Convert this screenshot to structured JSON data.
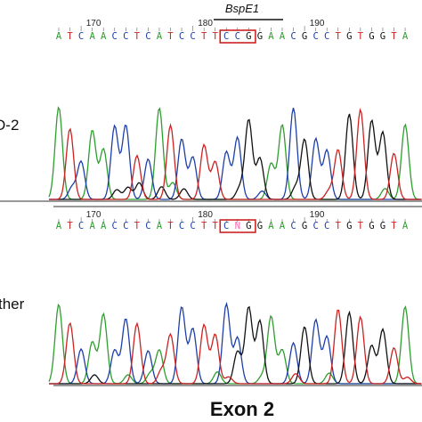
{
  "figure": {
    "enzyme_label": "BspE1",
    "bottom_title": "Exon 2",
    "colors": {
      "A": "#2e9e2e",
      "C": "#1e3fa8",
      "G": "#111111",
      "T": "#cc2222",
      "N": "#ff69b4",
      "highlight_box": "#cc2222"
    }
  },
  "panels": [
    {
      "id": "top",
      "sample_label": "D-2",
      "position_marks": [
        {
          "value": "170",
          "index": 2
        },
        {
          "value": "180",
          "index": 12
        },
        {
          "value": "190",
          "index": 22
        }
      ],
      "sequence": "ATCAACCTCATCCTTCCGGAACGCCTGTGGTA",
      "highlight": {
        "start": 15,
        "length": 3
      }
    },
    {
      "id": "bottom",
      "sample_label": "ther",
      "position_marks": [
        {
          "value": "170",
          "index": 2
        },
        {
          "value": "180",
          "index": 12
        },
        {
          "value": "190",
          "index": 22
        }
      ],
      "sequence": "ATCAACCTCATCCTTCNGGAACGCCTGTGGTA",
      "highlight": {
        "start": 15,
        "length": 3
      }
    }
  ]
}
